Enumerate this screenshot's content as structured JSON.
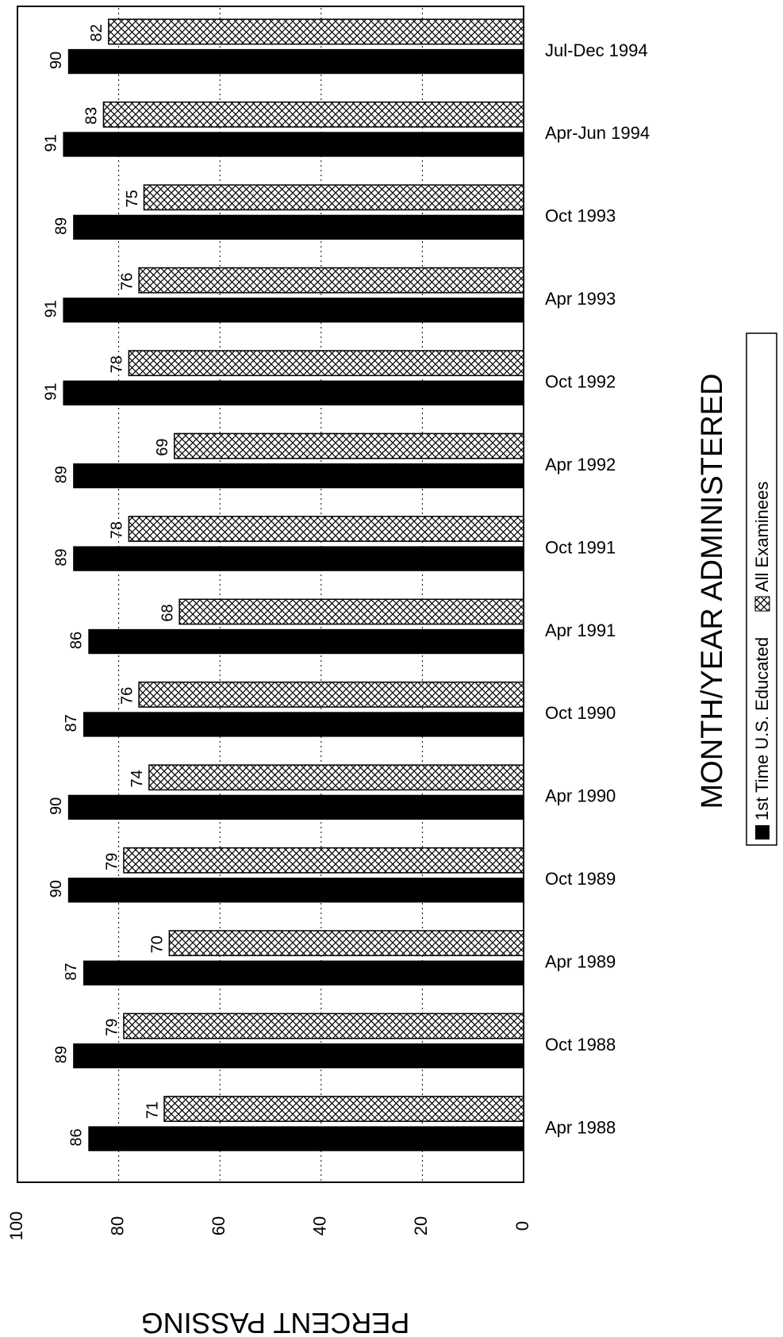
{
  "chart_data": {
    "type": "bar",
    "orientation": "horizontal",
    "categories": [
      "Jul-Dec 1994",
      "Apr-Jun 1994",
      "Oct 1993",
      "Apr 1993",
      "Oct 1992",
      "Apr 1992",
      "Oct 1991",
      "Apr 1991",
      "Oct 1990",
      "Apr 1990",
      "Oct 1989",
      "Apr 1989",
      "Oct 1988",
      "Apr 1988"
    ],
    "series": [
      {
        "name": "All Examinees",
        "values": [
          82,
          83,
          75,
          76,
          78,
          69,
          78,
          68,
          76,
          74,
          79,
          70,
          79,
          71
        ]
      },
      {
        "name": "1st Time U.S. Educated",
        "values": [
          90,
          91,
          89,
          91,
          91,
          89,
          89,
          86,
          87,
          90,
          90,
          87,
          89,
          86
        ]
      }
    ],
    "value_axis": {
      "label": "PERCENT PASSING",
      "min": 0,
      "max": 100,
      "ticks": [
        "0",
        "20",
        "40",
        "60",
        "80",
        "100"
      ],
      "reversed": true
    },
    "category_axis": {
      "label": "MONTH/YEAR ADMINISTERED"
    },
    "legend_position": "bottom",
    "grid": true,
    "colors": {
      "All Examinees": "#ffffff",
      "1st Time U.S. Educated": "#000000"
    },
    "patterns": {
      "All Examinees": "crosshatch",
      "1st Time U.S. Educated": "solid"
    }
  }
}
